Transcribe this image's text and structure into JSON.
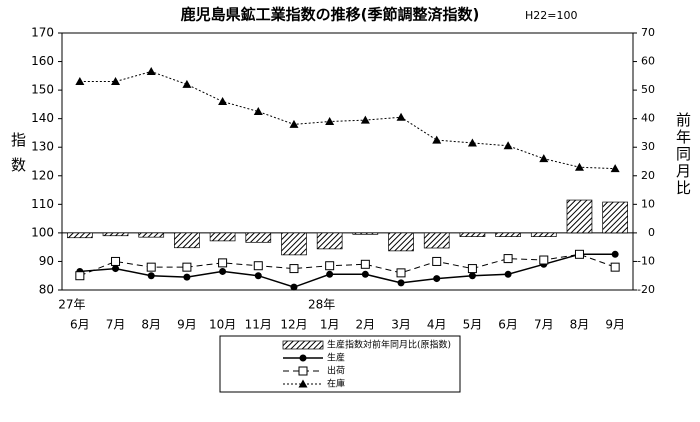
{
  "chart_data": {
    "type": "bar_line",
    "title": "鹿児島県鉱工業指数の推移(季節調整済指数)",
    "subtitle": "H22=100",
    "y_label": "指数",
    "y2_label": "前年同月比",
    "categories": [
      "6月",
      "7月",
      "8月",
      "9月",
      "10月",
      "11月",
      "12月",
      "1月",
      "2月",
      "3月",
      "4月",
      "5月",
      "6月",
      "7月",
      "8月",
      "9月"
    ],
    "year_labels": [
      "27年",
      null,
      null,
      null,
      null,
      null,
      null,
      "28年",
      null,
      null,
      null,
      null,
      null,
      null,
      null,
      null
    ],
    "ylim": [
      80,
      170
    ],
    "yticks": [
      80,
      90,
      100,
      110,
      120,
      130,
      140,
      150,
      160,
      170
    ],
    "y2lim": [
      -20,
      70
    ],
    "y2ticks": [
      -20,
      -10,
      0,
      10,
      20,
      30,
      40,
      50,
      60,
      70
    ],
    "series": [
      {
        "name": "生産指数対前年同月比(原指数)",
        "mark": "bar",
        "axis": "y2",
        "color": "#000000",
        "values": [
          -1.7,
          -1,
          -1.5,
          -5.2,
          -2.8,
          -3.3,
          -7.7,
          -5.6,
          -0.5,
          -6.3,
          -5.3,
          -1.3,
          -1.3,
          -1.3,
          11.5,
          10.8
        ]
      },
      {
        "name": "生産",
        "mark": "line",
        "marker": "circle",
        "dash": "solid",
        "color": "#000000",
        "values": [
          86.5,
          87.5,
          85,
          84.5,
          86.5,
          85,
          81,
          85.5,
          85.5,
          82.5,
          84,
          85,
          85.5,
          89,
          92.5,
          92.5
        ]
      },
      {
        "name": "出荷",
        "mark": "line",
        "marker": "square",
        "dash": "dashed",
        "color": "#000000",
        "values": [
          85,
          90,
          88,
          88,
          89.5,
          88.5,
          87.5,
          88.5,
          89,
          86,
          90,
          87.5,
          91,
          90.5,
          92.5,
          88
        ]
      },
      {
        "name": "在庫",
        "mark": "line",
        "marker": "triangle",
        "dash": "dotted",
        "color": "#000000",
        "values": [
          153,
          153,
          156.5,
          152,
          146,
          142.5,
          138,
          139,
          139.5,
          140.5,
          132.5,
          131.5,
          130.5,
          126,
          123,
          122.5
        ]
      }
    ]
  }
}
